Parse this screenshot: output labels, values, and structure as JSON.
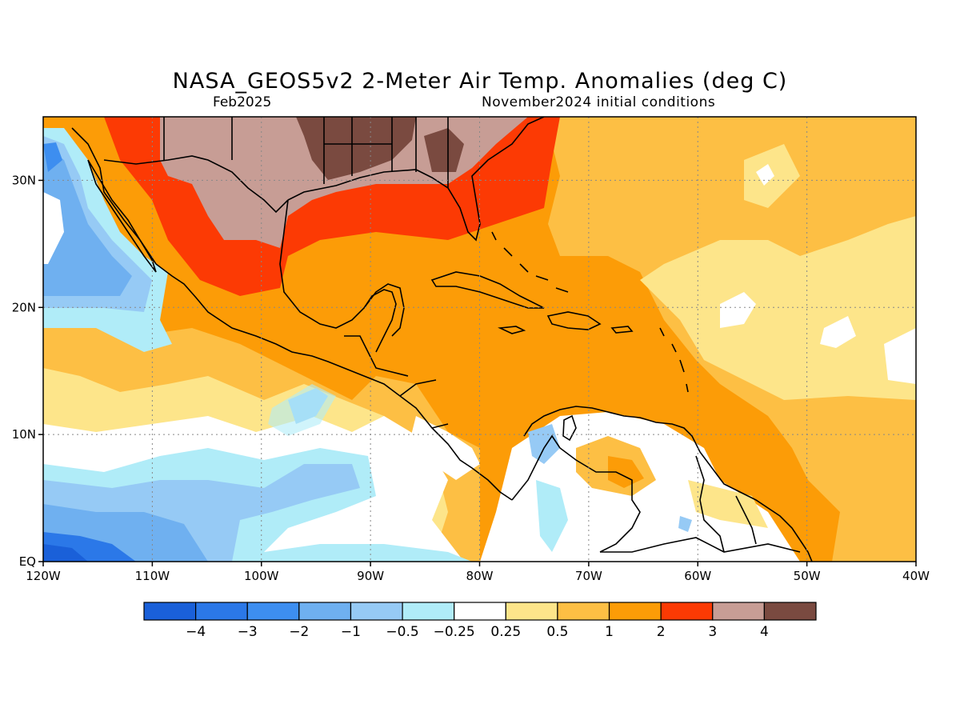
{
  "map": {
    "title": "NASA_GEOS5v2 2-Meter Air Temp. Anomalies (deg C)",
    "subtitle_left": "Feb2025",
    "subtitle_right": "November2024 initial conditions",
    "extent": {
      "lon": [
        -120,
        -40
      ],
      "lat": [
        0,
        35
      ]
    },
    "lon_ticks": [
      {
        "lon": -120,
        "label": "120W"
      },
      {
        "lon": -110,
        "label": "110W"
      },
      {
        "lon": -100,
        "label": "100W"
      },
      {
        "lon": -90,
        "label": "90W"
      },
      {
        "lon": -80,
        "label": "80W"
      },
      {
        "lon": -70,
        "label": "70W"
      },
      {
        "lon": -60,
        "label": "60W"
      },
      {
        "lon": -50,
        "label": "50W"
      },
      {
        "lon": -40,
        "label": "40W"
      }
    ],
    "lat_ticks": [
      {
        "lat": 0,
        "label": "EQ"
      },
      {
        "lat": 10,
        "label": "10N"
      },
      {
        "lat": 20,
        "label": "20N"
      },
      {
        "lat": 30,
        "label": "30N"
      }
    ],
    "gridlines": "dotted"
  },
  "colorbar": {
    "colors": [
      "#1a60d9",
      "#2b78e8",
      "#3d8ef0",
      "#6fb0f0",
      "#96caf5",
      "#b0ecf8",
      "#ffffff",
      "#fde58a",
      "#fdbf44",
      "#fc9c07",
      "#fc3a04",
      "#c79d95",
      "#7a4a40"
    ],
    "labels": [
      "-4",
      "-3",
      "-2",
      "-1",
      "-0.5",
      "-0.25",
      "0.25",
      "0.5",
      "1",
      "2",
      "3",
      "4"
    ]
  },
  "colors": {
    "background": "#ffffff",
    "land_outline": "#000000"
  }
}
